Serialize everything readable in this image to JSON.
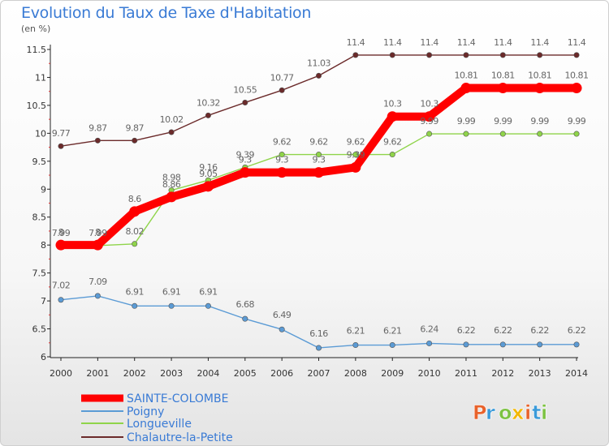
{
  "title": "Evolution du Taux de Taxe d'Habitation",
  "subtitle": "(en %)",
  "brand": "Proxiti",
  "chart_data": {
    "type": "line",
    "title": "Evolution du Taux de Taxe d'Habitation",
    "ylabel": "(en %)",
    "xlabel": "",
    "ylim": [
      6,
      11.5
    ],
    "y_ticks": [
      6,
      6.5,
      7,
      7.5,
      8,
      8.5,
      9,
      9.5,
      10,
      10.5,
      11,
      11.5
    ],
    "y_tick_labels": [
      "6",
      "6.5",
      "7",
      "7.5",
      "8",
      "8.5",
      "9",
      "9.5",
      "10",
      "10.5",
      "11",
      "11.5"
    ],
    "categories": [
      "2000",
      "2001",
      "2002",
      "2003",
      "2004",
      "2005",
      "2006",
      "2007",
      "2008",
      "2009",
      "2010",
      "2011",
      "2012",
      "2013",
      "2014"
    ],
    "grid": false,
    "legend_position": "bottom-left",
    "series": [
      {
        "name": "SAINTE-COLOMBE",
        "color": "#ff0000",
        "values": [
          8,
          8,
          8.6,
          8.86,
          9.05,
          9.3,
          9.3,
          9.3,
          9.39,
          10.3,
          10.3,
          10.81,
          10.81,
          10.81,
          10.81
        ]
      },
      {
        "name": "Poigny",
        "color": "#5b9bd5",
        "values": [
          7.02,
          7.09,
          6.91,
          6.91,
          6.91,
          6.68,
          6.49,
          6.16,
          6.21,
          6.21,
          6.24,
          6.22,
          6.22,
          6.22,
          6.22
        ]
      },
      {
        "name": "Longueville",
        "color": "#8fd44a",
        "values": [
          7.99,
          7.99,
          8.02,
          8.98,
          9.16,
          9.39,
          9.62,
          9.62,
          9.62,
          9.62,
          9.99,
          9.99,
          9.99,
          9.99,
          9.99
        ]
      },
      {
        "name": "Chalautre-la-Petite",
        "color": "#6b2a2a",
        "values": [
          9.77,
          9.87,
          9.87,
          10.02,
          10.32,
          10.55,
          10.77,
          11.03,
          11.4,
          11.4,
          11.4,
          11.4,
          11.4,
          11.4,
          11.4
        ]
      }
    ]
  }
}
